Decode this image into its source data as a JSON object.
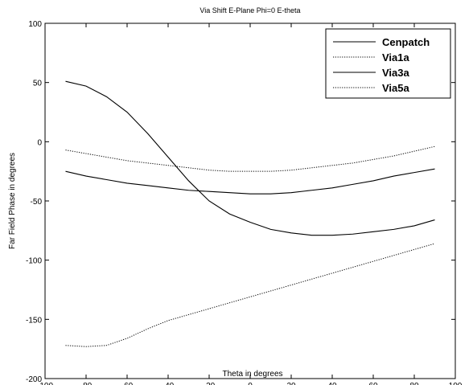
{
  "chart_data": {
    "type": "line",
    "title": "Via Shift E-Plane Phi=0 E-theta",
    "xlabel": "Theta in degrees",
    "ylabel": "Far Field Phase in degrees",
    "xlim": [
      -100,
      100
    ],
    "ylim": [
      -200,
      100
    ],
    "xticks": [
      -100,
      -80,
      -60,
      -40,
      -20,
      0,
      20,
      40,
      60,
      80,
      100
    ],
    "yticks": [
      -200,
      -150,
      -100,
      -50,
      0,
      50,
      100
    ],
    "grid": false,
    "legend_position": "top-right",
    "series": [
      {
        "name": "Cenpatch",
        "style": "solid",
        "x": [
          -90,
          -80,
          -70,
          -60,
          -50,
          -40,
          -30,
          -20,
          -10,
          0,
          10,
          20,
          30,
          40,
          50,
          60,
          70,
          80,
          90
        ],
        "y": [
          -25,
          -29,
          -32,
          -35,
          -37,
          -39,
          -41,
          -42,
          -43,
          -44,
          -44,
          -43,
          -41,
          -39,
          -36,
          -33,
          -29,
          -26,
          -23
        ]
      },
      {
        "name": "Via1a",
        "style": "dotted",
        "x": [
          -90,
          -80,
          -70,
          -60,
          -50,
          -40,
          -30,
          -20,
          -10,
          0,
          10,
          20,
          30,
          40,
          50,
          60,
          70,
          80,
          90
        ],
        "y": [
          -7,
          -10,
          -13,
          -16,
          -18,
          -20,
          -22,
          -24,
          -25,
          -25,
          -25,
          -24,
          -22,
          -20,
          -18,
          -15,
          -12,
          -8,
          -4
        ]
      },
      {
        "name": "Via3a",
        "style": "solid",
        "x": [
          -90,
          -80,
          -70,
          -60,
          -50,
          -40,
          -30,
          -20,
          -10,
          0,
          10,
          20,
          30,
          40,
          50,
          60,
          70,
          80,
          90
        ],
        "y": [
          51,
          47,
          38,
          25,
          7,
          -13,
          -33,
          -50,
          -61,
          -68,
          -74,
          -77,
          -79,
          -79,
          -78,
          -76,
          -74,
          -71,
          -66
        ]
      },
      {
        "name": "Via5a",
        "style": "dotted",
        "x": [
          -90,
          -80,
          -70,
          -60,
          -50,
          -40,
          -30,
          -20,
          -10,
          0,
          10,
          20,
          30,
          40,
          50,
          60,
          70,
          80,
          90
        ],
        "y": [
          -172,
          -173,
          -172,
          -166,
          -158,
          -151,
          -146,
          -141,
          -136,
          -131,
          -126,
          -121,
          -116,
          -111,
          -106,
          -101,
          -96,
          -91,
          -86
        ]
      }
    ]
  }
}
